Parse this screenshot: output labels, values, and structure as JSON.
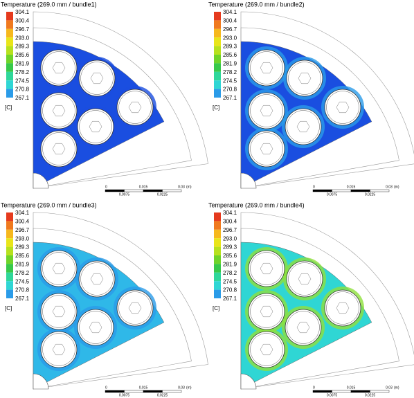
{
  "panels": [
    {
      "title": "Temperature (269.0 mm / bundle1)"
    },
    {
      "title": "Temperature (269.0 mm / bundle2)"
    },
    {
      "title": "Temperature (269.0 mm / bundle3)"
    },
    {
      "title": "Temperature (269.0 mm / bundle4)"
    }
  ],
  "legend": {
    "levels": [
      "304.1",
      "300.4",
      "296.7",
      "293.0",
      "289.3",
      "285.6",
      "281.9",
      "278.2",
      "274.5",
      "270.8",
      "267.1"
    ],
    "unit": "[C]"
  },
  "scale": {
    "labels": [
      "0",
      "0.015",
      "0.03",
      "(m)"
    ],
    "sublabels": [
      "0.0075",
      "0.0225"
    ]
  }
}
